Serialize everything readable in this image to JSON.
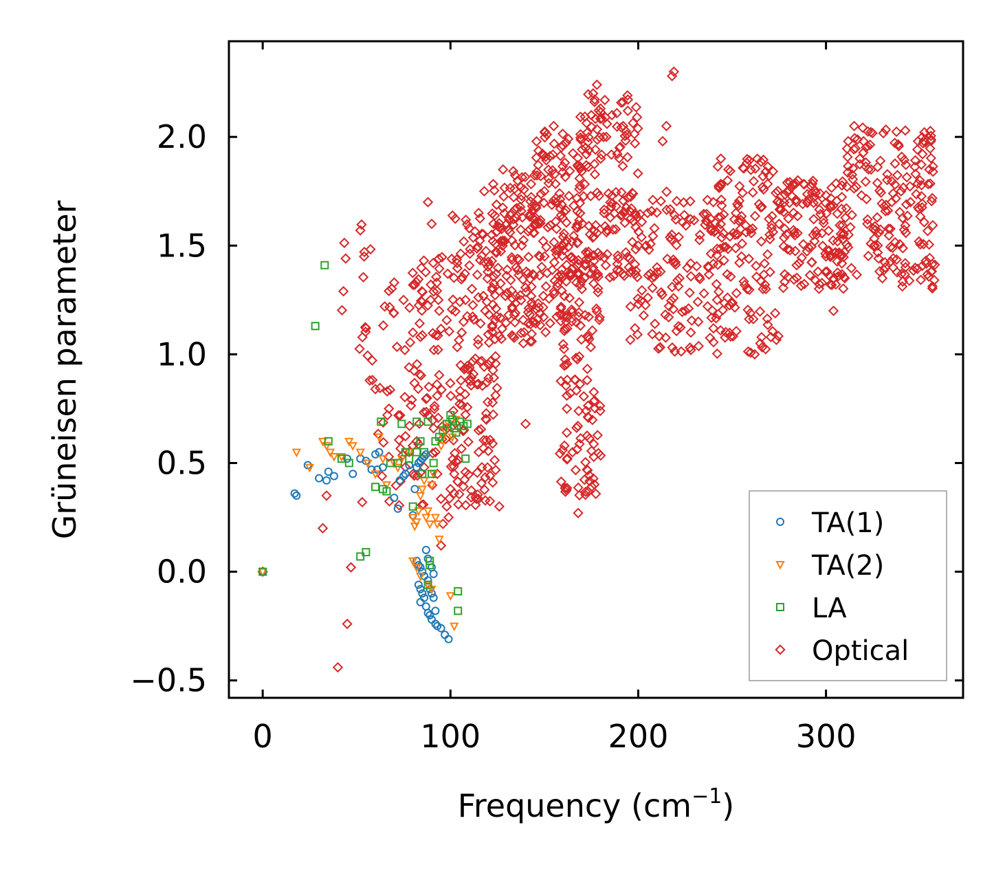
{
  "chart_data": {
    "type": "scatter",
    "title": "",
    "xlabel": "Frequency (cm",
    "xlabel_sup": "−1",
    "xlabel_tail": ")",
    "ylabel": "Grüneisen parameter",
    "xlim": [
      -18,
      373
    ],
    "ylim": [
      -0.58,
      2.44
    ],
    "xticks": [
      0,
      100,
      200,
      300
    ],
    "xtick_labels": [
      "0",
      "100",
      "200",
      "300"
    ],
    "yticks": [
      -0.5,
      0.0,
      0.5,
      1.0,
      1.5,
      2.0
    ],
    "ytick_labels": [
      "−0.5",
      "0.0",
      "0.5",
      "1.0",
      "1.5",
      "2.0"
    ],
    "legend_position": "bottom-right",
    "series": [
      {
        "name": "TA(1)",
        "marker": "circle",
        "color": "#1f77b4",
        "points": [
          [
            0,
            0
          ],
          [
            17,
            0.36
          ],
          [
            18,
            0.35
          ],
          [
            24,
            0.49
          ],
          [
            30,
            0.43
          ],
          [
            34,
            0.42
          ],
          [
            35,
            0.46
          ],
          [
            38,
            0.44
          ],
          [
            45,
            0.52
          ],
          [
            48,
            0.45
          ],
          [
            52,
            0.52
          ],
          [
            55,
            0.51
          ],
          [
            58,
            0.47
          ],
          [
            60,
            0.54
          ],
          [
            61,
            0.47
          ],
          [
            62,
            0.55
          ],
          [
            64,
            0.48
          ],
          [
            70,
            0.34
          ],
          [
            72,
            0.29
          ],
          [
            73,
            0.42
          ],
          [
            75,
            0.44
          ],
          [
            76,
            0.45
          ],
          [
            78,
            0.49
          ],
          [
            80,
            0.26
          ],
          [
            81,
            0.38
          ],
          [
            82,
            0.48
          ],
          [
            83,
            0.5
          ],
          [
            84,
            0.51
          ],
          [
            85,
            0.52
          ],
          [
            86,
            0.53
          ],
          [
            87,
            0.54
          ],
          [
            82,
            0.05
          ],
          [
            83,
            0.03
          ],
          [
            84,
            0.02
          ],
          [
            85,
            0.0
          ],
          [
            86,
            -0.02
          ],
          [
            83,
            -0.06
          ],
          [
            84,
            -0.08
          ],
          [
            85,
            -0.1
          ],
          [
            86,
            -0.12
          ],
          [
            84,
            -0.14
          ],
          [
            88,
            -0.04
          ],
          [
            89,
            -0.08
          ],
          [
            90,
            -0.1
          ],
          [
            91,
            -0.12
          ],
          [
            87,
            -0.16
          ],
          [
            88,
            -0.19
          ],
          [
            89,
            -0.2
          ],
          [
            90,
            -0.22
          ],
          [
            92,
            -0.24
          ],
          [
            93,
            -0.25
          ],
          [
            95,
            -0.26
          ],
          [
            97,
            -0.29
          ],
          [
            99,
            -0.31
          ],
          [
            87,
            0.1
          ],
          [
            88,
            0.06
          ],
          [
            90,
            0.02
          ],
          [
            91,
            -0.01
          ],
          [
            92,
            -0.18
          ]
        ]
      },
      {
        "name": "TA(2)",
        "marker": "triangle-down",
        "color": "#ff7f0e",
        "points": [
          [
            0,
            0
          ],
          [
            18,
            0.55
          ],
          [
            25,
            0.48
          ],
          [
            32,
            0.6
          ],
          [
            34,
            0.58
          ],
          [
            36,
            0.55
          ],
          [
            38,
            0.53
          ],
          [
            42,
            0.53
          ],
          [
            46,
            0.6
          ],
          [
            48,
            0.58
          ],
          [
            52,
            0.55
          ],
          [
            56,
            0.5
          ],
          [
            60,
            0.45
          ],
          [
            62,
            0.62
          ],
          [
            64,
            0.52
          ],
          [
            66,
            0.4
          ],
          [
            70,
            0.5
          ],
          [
            72,
            0.48
          ],
          [
            74,
            0.52
          ],
          [
            78,
            0.55
          ],
          [
            80,
            0.25
          ],
          [
            81,
            0.21
          ],
          [
            82,
            0.23
          ],
          [
            83,
            0.28
          ],
          [
            84,
            0.35
          ],
          [
            85,
            0.38
          ],
          [
            86,
            0.42
          ],
          [
            87,
            0.25
          ],
          [
            88,
            0.28
          ],
          [
            89,
            0.22
          ],
          [
            90,
            0.4
          ],
          [
            91,
            0.45
          ],
          [
            92,
            0.25
          ],
          [
            93,
            0.22
          ],
          [
            94,
            0.15
          ],
          [
            95,
            0.58
          ],
          [
            96,
            0.62
          ],
          [
            97,
            0.65
          ],
          [
            99,
            0.68
          ],
          [
            100,
            -0.11
          ],
          [
            101,
            0.62
          ],
          [
            102,
            -0.25
          ],
          [
            103,
            0.7
          ],
          [
            80,
            0.05
          ],
          [
            82,
            0.02
          ],
          [
            84,
            -0.02
          ],
          [
            88,
            -0.06
          ],
          [
            90,
            -0.08
          ]
        ]
      },
      {
        "name": "LA",
        "marker": "square",
        "color": "#2ca02c",
        "points": [
          [
            0,
            0
          ],
          [
            28,
            1.13
          ],
          [
            33,
            1.41
          ],
          [
            35,
            0.6
          ],
          [
            42,
            0.52
          ],
          [
            46,
            0.5
          ],
          [
            52,
            0.07
          ],
          [
            55,
            0.09
          ],
          [
            60,
            0.39
          ],
          [
            63,
            0.69
          ],
          [
            64,
            0.38
          ],
          [
            66,
            0.37
          ],
          [
            68,
            0.5
          ],
          [
            72,
            0.5
          ],
          [
            74,
            0.68
          ],
          [
            76,
            0.55
          ],
          [
            78,
            0.52
          ],
          [
            80,
            0.3
          ],
          [
            82,
            0.55
          ],
          [
            82,
            0.69
          ],
          [
            84,
            0.6
          ],
          [
            85,
            0.45
          ],
          [
            86,
            0.55
          ],
          [
            88,
            0.69
          ],
          [
            89,
            0.05
          ],
          [
            89,
            0.03
          ],
          [
            90,
            0.45
          ],
          [
            91,
            0.5
          ],
          [
            92,
            0.6
          ],
          [
            94,
            0.62
          ],
          [
            96,
            0.65
          ],
          [
            98,
            0.68
          ],
          [
            100,
            0.72
          ],
          [
            101,
            0.7
          ],
          [
            102,
            0.66
          ],
          [
            103,
            0.64
          ],
          [
            104,
            -0.09
          ],
          [
            104,
            -0.18
          ],
          [
            105,
            0.69
          ],
          [
            107,
            0.67
          ],
          [
            108,
            0.52
          ],
          [
            109,
            0.68
          ],
          [
            88,
            -0.06
          ]
        ]
      },
      {
        "name": "Optical",
        "marker": "diamond",
        "color": "#d62728",
        "clusters": [
          {
            "x_range": [
              40,
              60
            ],
            "y_range": [
              0.85,
              1.6
            ],
            "density": 12,
            "description": "sparse cloud"
          },
          {
            "x_range": [
              58,
              80
            ],
            "y_range": [
              0.3,
              1.35
            ],
            "density": 35,
            "description": "sparse cloud"
          },
          {
            "x_range": [
              78,
              100
            ],
            "y_range": [
              0.3,
              1.45
            ],
            "density": 80,
            "description": "dense cloud"
          },
          {
            "x_range": [
              100,
              125
            ],
            "y_range": [
              0.3,
              1.65
            ],
            "density": 160,
            "description": "dense cloud"
          },
          {
            "x_range": [
              122,
              145
            ],
            "y_range": [
              1.05,
              1.85
            ],
            "density": 140,
            "description": "dense cloud"
          },
          {
            "x_range": [
              145,
              170
            ],
            "y_range": [
              1.1,
              2.05
            ],
            "density": 160,
            "description": "dense cloud"
          },
          {
            "x_range": [
              158,
              180
            ],
            "y_range": [
              0.35,
              1.45
            ],
            "density": 110,
            "description": "descending streaks"
          },
          {
            "x_range": [
              168,
              200
            ],
            "y_range": [
              1.35,
              2.2
            ],
            "density": 140,
            "description": "dense cloud"
          },
          {
            "x_range": [
              195,
              240
            ],
            "y_range": [
              1.0,
              1.75
            ],
            "density": 120,
            "description": "dense cloud"
          },
          {
            "x_range": [
              240,
              275
            ],
            "y_range": [
              1.0,
              1.9
            ],
            "density": 140,
            "description": "arched band"
          },
          {
            "x_range": [
              275,
              310
            ],
            "y_range": [
              1.3,
              1.8
            ],
            "density": 130,
            "description": "band"
          },
          {
            "x_range": [
              310,
              358
            ],
            "y_range": [
              1.3,
              2.05
            ],
            "density": 170,
            "description": "band"
          }
        ],
        "points": [
          [
            0,
            0
          ],
          [
            32,
            0.2
          ],
          [
            34,
            0.35
          ],
          [
            40,
            -0.44
          ],
          [
            43,
            1.29
          ],
          [
            45,
            -0.24
          ],
          [
            47,
            0.02
          ],
          [
            52,
            1.57
          ],
          [
            53,
            0.32
          ],
          [
            54,
            1.45
          ],
          [
            55,
            1.12
          ],
          [
            57,
            0.88
          ],
          [
            60,
            0.84
          ],
          [
            65,
            1.22
          ],
          [
            70,
            1.33
          ],
          [
            75,
            1.25
          ],
          [
            78,
            0.55
          ],
          [
            80,
            1.1
          ],
          [
            82,
            0.6
          ],
          [
            84,
            1.08
          ],
          [
            86,
            0.48
          ],
          [
            88,
            1.7
          ],
          [
            90,
            1.6
          ],
          [
            92,
            0.55
          ],
          [
            94,
            1.2
          ],
          [
            95,
            0.12
          ],
          [
            96,
            0.22
          ],
          [
            98,
            0.3
          ],
          [
            99,
            0.25
          ],
          [
            100,
            0.38
          ],
          [
            102,
            0.45
          ],
          [
            105,
            0.8
          ],
          [
            106,
            1.1
          ],
          [
            108,
            1.25
          ],
          [
            110,
            1.58
          ],
          [
            115,
            1.65
          ],
          [
            118,
            1.75
          ],
          [
            122,
            1.55
          ],
          [
            126,
            0.3
          ],
          [
            128,
            1.85
          ],
          [
            130,
            1.6
          ],
          [
            135,
            1.4
          ],
          [
            138,
            1.5
          ],
          [
            140,
            0.68
          ],
          [
            145,
            1.6
          ],
          [
            150,
            1.75
          ],
          [
            155,
            2.05
          ],
          [
            160,
            1.5
          ],
          [
            162,
            0.75
          ],
          [
            165,
            0.55
          ],
          [
            168,
            0.27
          ],
          [
            170,
            1.3
          ],
          [
            172,
            1.95
          ],
          [
            175,
            2.1
          ],
          [
            176,
            2.2
          ],
          [
            178,
            2.24
          ],
          [
            180,
            1.9
          ],
          [
            183,
            2.0
          ],
          [
            186,
            2.1
          ],
          [
            190,
            1.95
          ],
          [
            192,
            2.05
          ],
          [
            195,
            1.4
          ],
          [
            200,
            1.5
          ],
          [
            205,
            1.65
          ],
          [
            210,
            1.4
          ],
          [
            213,
            1.98
          ],
          [
            215,
            2.05
          ],
          [
            218,
            2.28
          ],
          [
            219,
            2.3
          ],
          [
            220,
            1.62
          ],
          [
            222,
            1.35
          ],
          [
            225,
            1.2
          ],
          [
            228,
            1.1
          ],
          [
            232,
            1.15
          ],
          [
            235,
            1.28
          ],
          [
            240,
            1.7
          ],
          [
            242,
            1.25
          ],
          [
            244,
            1.9
          ],
          [
            248,
            1.85
          ],
          [
            252,
            1.65
          ],
          [
            255,
            1.45
          ],
          [
            258,
            1.3
          ],
          [
            262,
            1.0
          ],
          [
            265,
            1.05
          ],
          [
            268,
            1.3
          ],
          [
            270,
            1.55
          ],
          [
            275,
            1.6
          ],
          [
            280,
            1.75
          ],
          [
            285,
            1.8
          ],
          [
            290,
            1.7
          ],
          [
            295,
            1.55
          ],
          [
            300,
            1.45
          ],
          [
            304,
            1.2
          ],
          [
            308,
            1.45
          ],
          [
            310,
            1.35
          ],
          [
            312,
            1.55
          ],
          [
            315,
            2.05
          ],
          [
            318,
            1.9
          ],
          [
            320,
            1.98
          ],
          [
            322,
            1.6
          ],
          [
            324,
            1.85
          ],
          [
            326,
            1.5
          ],
          [
            330,
            1.35
          ],
          [
            335,
            1.7
          ],
          [
            340,
            1.75
          ],
          [
            345,
            1.7
          ],
          [
            350,
            1.8
          ],
          [
            355,
            1.85
          ],
          [
            357,
            1.84
          ]
        ]
      }
    ]
  }
}
